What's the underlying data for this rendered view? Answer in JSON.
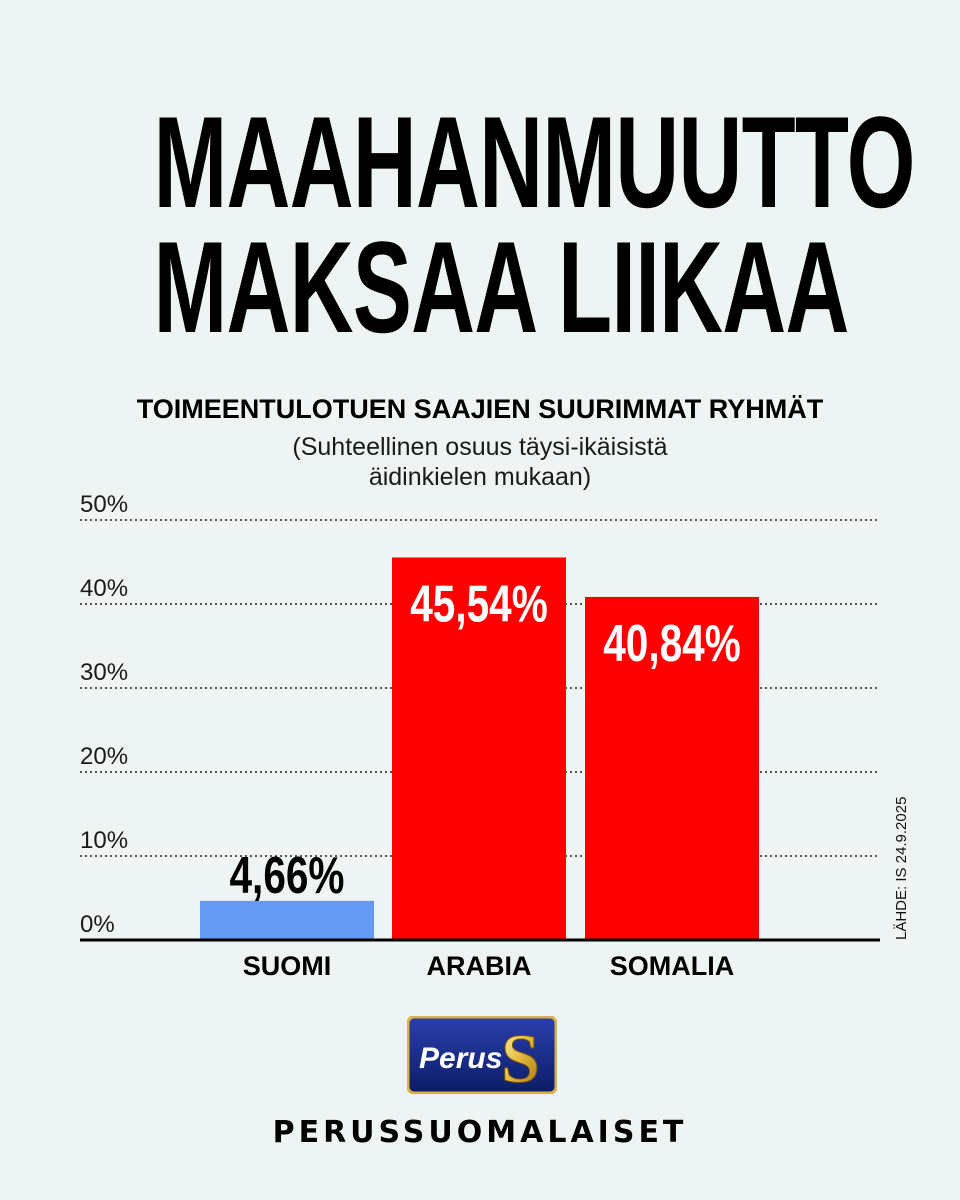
{
  "headline": {
    "line1": "MAAHANMUUTTO",
    "line2": "MAKSAA LIIKAA"
  },
  "source_note": "LÄHDE: IS 24.9.2025",
  "logo": {
    "text": "Perus",
    "letter": "S"
  },
  "brand": "PERUSSUOMALAISET",
  "colors": {
    "background": "#eef4f3",
    "suomi_bar": "#6699f2",
    "highlight_bar": "#ff0000"
  },
  "chart_data": {
    "type": "bar",
    "title": "TOIMEENTULOTUEN SAAJIEN SUURIMMAT RYHMÄT",
    "subtitle_lines": [
      "(Suhteellinen osuus täysi-ikäisistä",
      "äidinkielen mukaan)"
    ],
    "categories": [
      "SUOMI",
      "ARABIA",
      "SOMALIA"
    ],
    "values": [
      4.66,
      45.54,
      40.84
    ],
    "value_labels": [
      "4,66%",
      "45,54%",
      "40,84%"
    ],
    "bar_colors": [
      "#6699f2",
      "#ff0000",
      "#ff0000"
    ],
    "ylim": [
      0,
      50
    ],
    "yticks": [
      0,
      10,
      20,
      30,
      40,
      50
    ],
    "ytick_labels": [
      "0%",
      "10%",
      "20%",
      "30%",
      "40%",
      "50%"
    ],
    "grid": "dotted horizontal",
    "legend": "none"
  }
}
